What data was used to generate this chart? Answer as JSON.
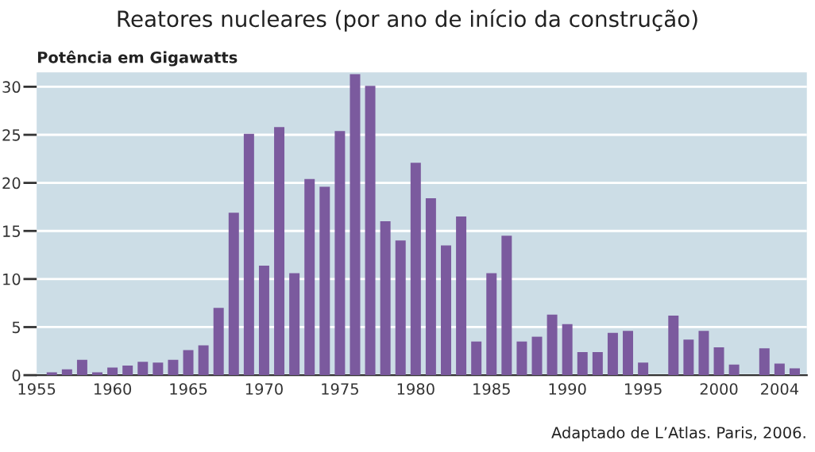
{
  "chart_data": {
    "type": "bar",
    "title": "Reatores nucleares (por ano de início da construção)",
    "ylabel": "Potência em Gigawatts",
    "x": [
      1956,
      1957,
      1958,
      1959,
      1960,
      1961,
      1962,
      1963,
      1964,
      1965,
      1966,
      1967,
      1968,
      1969,
      1970,
      1971,
      1972,
      1973,
      1974,
      1975,
      1976,
      1977,
      1978,
      1979,
      1980,
      1981,
      1982,
      1983,
      1984,
      1985,
      1986,
      1987,
      1988,
      1989,
      1990,
      1991,
      1992,
      1993,
      1994,
      1995,
      1996,
      1997,
      1998,
      1999,
      2000,
      2001,
      2002,
      2003,
      2004,
      2005
    ],
    "values": [
      0.3,
      0.6,
      1.6,
      0.3,
      0.8,
      1.0,
      1.4,
      1.3,
      1.6,
      2.6,
      3.1,
      7.0,
      16.9,
      25.1,
      11.4,
      25.8,
      10.6,
      20.4,
      19.6,
      25.4,
      31.3,
      30.1,
      16.0,
      14.0,
      22.1,
      18.4,
      13.5,
      16.5,
      3.5,
      10.6,
      14.5,
      3.5,
      4.0,
      6.3,
      5.3,
      2.4,
      2.4,
      4.4,
      4.6,
      1.3,
      null,
      6.2,
      3.7,
      4.6,
      2.9,
      1.1,
      null,
      2.8,
      1.2,
      0.7
    ],
    "color": "#7b5a9e",
    "xlim": [
      1955,
      2005.8
    ],
    "ylim": [
      0,
      31.5
    ],
    "xticks": [
      1955,
      1960,
      1965,
      1970,
      1975,
      1980,
      1985,
      1990,
      1995,
      2000,
      2004
    ],
    "yticks": [
      0,
      5,
      10,
      15,
      20,
      25,
      30
    ],
    "grid": "y",
    "annotations": [
      "Adaptado de L’Atlas. Paris, 2006."
    ]
  }
}
